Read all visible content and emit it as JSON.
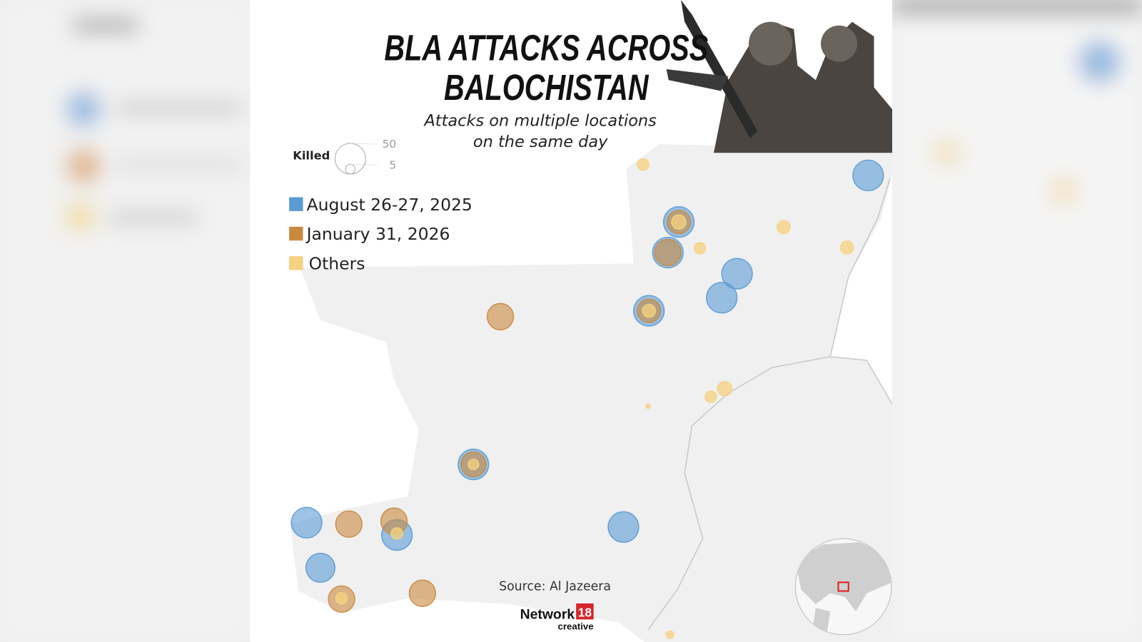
{
  "title_lines": [
    "BLA ATTACKS ACROSS",
    "BALOCHISTAN"
  ],
  "subtitle_lines": [
    "Attacks on multiple locations",
    "on the same day"
  ],
  "size_legend": {
    "label": "Killed",
    "values": [
      50,
      5
    ]
  },
  "legend": [
    {
      "name": "August 26-27, 2025",
      "color": "#5b9bd5"
    },
    {
      "name": "January 31, 2026",
      "color": "#c98a3f"
    },
    {
      "name": "Others",
      "color": "#f5d27f"
    }
  ],
  "markers": [
    {
      "group": 0,
      "killed": 50
    },
    {
      "group": 0,
      "killed": 50
    },
    {
      "group": 0,
      "killed": 50
    },
    {
      "group": 0,
      "killed": 50
    },
    {
      "group": 0,
      "killed": 45
    },
    {
      "group": 0,
      "killed": 50
    },
    {
      "group": 0,
      "killed": 50
    },
    {
      "group": 0,
      "killed": 50
    },
    {
      "group": 0,
      "killed": 50
    },
    {
      "group": 0,
      "killed": 50
    },
    {
      "group": 0,
      "killed": 50
    },
    {
      "group": 1,
      "killed": 37
    },
    {
      "group": 1,
      "killed": 37
    },
    {
      "group": 1,
      "killed": 37
    },
    {
      "group": 1,
      "killed": 37
    },
    {
      "group": 1,
      "killed": 37
    },
    {
      "group": 1,
      "killed": 29
    },
    {
      "group": 1,
      "killed": 37
    },
    {
      "group": 1,
      "killed": 29
    },
    {
      "group": 1,
      "killed": 33
    },
    {
      "group": 2,
      "killed": 7
    },
    {
      "group": 2,
      "killed": 9
    },
    {
      "group": 2,
      "killed": 7
    },
    {
      "group": 2,
      "killed": 9
    },
    {
      "group": 2,
      "killed": 7
    },
    {
      "group": 2,
      "killed": 11
    },
    {
      "group": 2,
      "killed": 1
    },
    {
      "group": 2,
      "killed": 3
    },
    {
      "group": 2,
      "killed": 11
    },
    {
      "group": 2,
      "killed": 9
    },
    {
      "group": 2,
      "killed": 6
    },
    {
      "group": 2,
      "killed": 7
    },
    {
      "group": 2,
      "killed": 7
    }
  ],
  "source": "Source: Al Jazeera",
  "logo": {
    "name": "Network",
    "number": "18",
    "tagline": "creative"
  }
}
